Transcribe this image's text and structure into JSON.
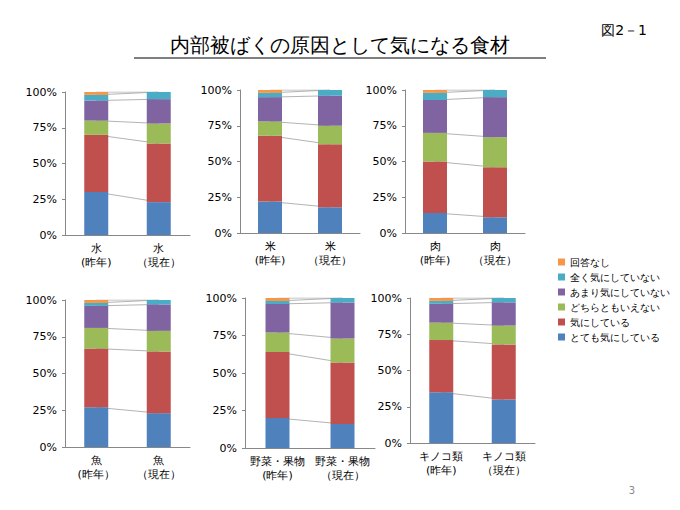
{
  "title": "内部被ばくの原因として気になる食材",
  "figure_label": "図2－1",
  "page_number": 3,
  "legend": "right",
  "chart_data": [
    {
      "type": "bar",
      "stacked": true,
      "grid": false,
      "categories": [
        "水\n(昨年)",
        "水\n（現在）"
      ],
      "ylim": [
        0,
        100
      ],
      "yticks": [
        {
          "value": 0,
          "label": "0%"
        },
        {
          "value": 25,
          "label": "25%"
        },
        {
          "value": 50,
          "label": "50%"
        },
        {
          "value": 75,
          "label": "75%"
        },
        {
          "value": 100,
          "label": "100%"
        }
      ],
      "series": [
        {
          "name": "とても気にしている",
          "color": "#4f81bd",
          "values": [
            30,
            23
          ]
        },
        {
          "name": "気にしている",
          "color": "#c0504d",
          "values": [
            40,
            41
          ]
        },
        {
          "name": "どちらともいえない",
          "color": "#9bbb59",
          "values": [
            10,
            14
          ]
        },
        {
          "name": "あまり気にしていない",
          "color": "#8064a2",
          "values": [
            14,
            17
          ]
        },
        {
          "name": "全く気にしていない",
          "color": "#4bacc6",
          "values": [
            4,
            5
          ]
        },
        {
          "name": "回答なし",
          "color": "#f79646",
          "values": [
            2,
            0
          ]
        }
      ]
    },
    {
      "type": "bar",
      "stacked": true,
      "grid": false,
      "categories": [
        "米\n(昨年)",
        "米\n（現在）"
      ],
      "ylim": [
        0,
        100
      ],
      "yticks": [
        {
          "value": 0,
          "label": "0%"
        },
        {
          "value": 25,
          "label": "25%"
        },
        {
          "value": 50,
          "label": "50%"
        },
        {
          "value": 75,
          "label": "75%"
        },
        {
          "value": 100,
          "label": "100%"
        }
      ],
      "series": [
        {
          "name": "とても気にしている",
          "color": "#4f81bd",
          "values": [
            22,
            18
          ]
        },
        {
          "name": "気にしている",
          "color": "#c0504d",
          "values": [
            46,
            44
          ]
        },
        {
          "name": "どちらともいえない",
          "color": "#9bbb59",
          "values": [
            10,
            13
          ]
        },
        {
          "name": "あまり気にしていない",
          "color": "#8064a2",
          "values": [
            17,
            21
          ]
        },
        {
          "name": "全く気にしていない",
          "color": "#4bacc6",
          "values": [
            3,
            4
          ]
        },
        {
          "name": "回答なし",
          "color": "#f79646",
          "values": [
            2,
            0
          ]
        }
      ]
    },
    {
      "type": "bar",
      "stacked": true,
      "grid": false,
      "categories": [
        "肉\n(昨年)",
        "肉\n（現在）"
      ],
      "ylim": [
        0,
        100
      ],
      "yticks": [
        {
          "value": 0,
          "label": "0%"
        },
        {
          "value": 25,
          "label": "25%"
        },
        {
          "value": 50,
          "label": "50%"
        },
        {
          "value": 75,
          "label": "75%"
        },
        {
          "value": 100,
          "label": "100%"
        }
      ],
      "series": [
        {
          "name": "とても気にしている",
          "color": "#4f81bd",
          "values": [
            14,
            11
          ]
        },
        {
          "name": "気にしている",
          "color": "#c0504d",
          "values": [
            36,
            35
          ]
        },
        {
          "name": "どちらともいえない",
          "color": "#9bbb59",
          "values": [
            20,
            21
          ]
        },
        {
          "name": "あまり気にしていない",
          "color": "#8064a2",
          "values": [
            23,
            28
          ]
        },
        {
          "name": "全く気にしていない",
          "color": "#4bacc6",
          "values": [
            5,
            5
          ]
        },
        {
          "name": "回答なし",
          "color": "#f79646",
          "values": [
            2,
            0
          ]
        }
      ]
    },
    {
      "type": "bar",
      "stacked": true,
      "grid": false,
      "categories": [
        "魚\n(昨年）",
        "魚\n（現在）"
      ],
      "ylim": [
        0,
        100
      ],
      "yticks": [
        {
          "value": 0,
          "label": "0%"
        },
        {
          "value": 25,
          "label": "25%"
        },
        {
          "value": 50,
          "label": "50%"
        },
        {
          "value": 75,
          "label": "75%"
        },
        {
          "value": 100,
          "label": "100%"
        }
      ],
      "series": [
        {
          "name": "とても気にしている",
          "color": "#4f81bd",
          "values": [
            27,
            23
          ]
        },
        {
          "name": "気にしている",
          "color": "#c0504d",
          "values": [
            40,
            42
          ]
        },
        {
          "name": "どちらともいえない",
          "color": "#9bbb59",
          "values": [
            14,
            14
          ]
        },
        {
          "name": "あまり気にしていない",
          "color": "#8064a2",
          "values": [
            15,
            18
          ]
        },
        {
          "name": "全く気にしていない",
          "color": "#4bacc6",
          "values": [
            2,
            3
          ]
        },
        {
          "name": "回答なし",
          "color": "#f79646",
          "values": [
            2,
            0
          ]
        }
      ]
    },
    {
      "type": "bar",
      "stacked": true,
      "grid": false,
      "categories": [
        "野菜・果物\n(昨年)",
        "野菜・果物\n（現在）"
      ],
      "ylim": [
        0,
        100
      ],
      "yticks": [
        {
          "value": 0,
          "label": "0%"
        },
        {
          "value": 25,
          "label": "25%"
        },
        {
          "value": 50,
          "label": "50%"
        },
        {
          "value": 75,
          "label": "75%"
        },
        {
          "value": 100,
          "label": "100%"
        }
      ],
      "series": [
        {
          "name": "とても気にしている",
          "color": "#4f81bd",
          "values": [
            20,
            16
          ]
        },
        {
          "name": "気にしている",
          "color": "#c0504d",
          "values": [
            44,
            41
          ]
        },
        {
          "name": "どちらともいえない",
          "color": "#9bbb59",
          "values": [
            13,
            16
          ]
        },
        {
          "name": "あまり気にしていない",
          "color": "#8064a2",
          "values": [
            19,
            24
          ]
        },
        {
          "name": "全く気にしていない",
          "color": "#4bacc6",
          "values": [
            2,
            3
          ]
        },
        {
          "name": "回答なし",
          "color": "#f79646",
          "values": [
            2,
            0
          ]
        }
      ]
    },
    {
      "type": "bar",
      "stacked": true,
      "grid": false,
      "categories": [
        "キノコ類\n(昨年)",
        "キノコ類\n（現在）"
      ],
      "ylim": [
        0,
        100
      ],
      "yticks": [
        {
          "value": 0,
          "label": "0%"
        },
        {
          "value": 25,
          "label": "25%"
        },
        {
          "value": 50,
          "label": "50%"
        },
        {
          "value": 75,
          "label": "75%"
        },
        {
          "value": 100,
          "label": "100%"
        }
      ],
      "series": [
        {
          "name": "とても気にしている",
          "color": "#4f81bd",
          "values": [
            35,
            30
          ]
        },
        {
          "name": "気にしている",
          "color": "#c0504d",
          "values": [
            36,
            38
          ]
        },
        {
          "name": "どちらともいえない",
          "color": "#9bbb59",
          "values": [
            12,
            13
          ]
        },
        {
          "name": "あまり気にしていない",
          "color": "#8064a2",
          "values": [
            13,
            16
          ]
        },
        {
          "name": "全く気にしていない",
          "color": "#4bacc6",
          "values": [
            2,
            3
          ]
        },
        {
          "name": "回答なし",
          "color": "#f79646",
          "values": [
            2,
            0
          ]
        }
      ]
    }
  ]
}
